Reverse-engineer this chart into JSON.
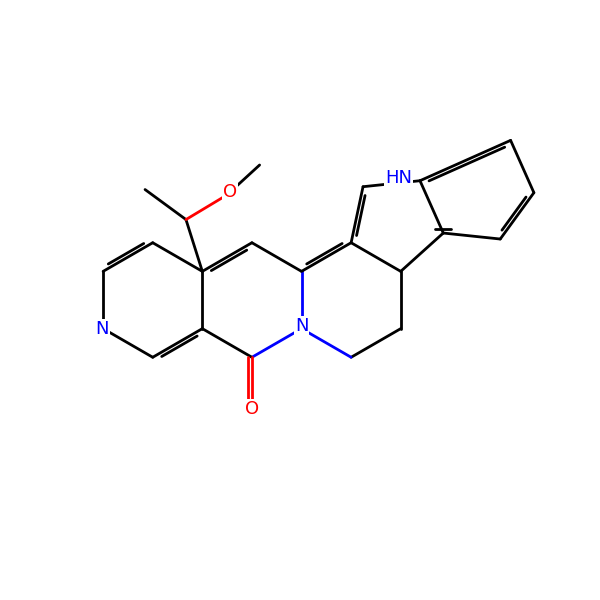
{
  "bg": "#ffffff",
  "bond_color": "#000000",
  "N_color": "#0000ff",
  "O_color": "#ff0000",
  "lw": 2.0,
  "dbl_sep": 0.07,
  "figsize": [
    6.0,
    6.0
  ],
  "dpi": 100,
  "xlim": [
    -0.5,
    10.5
  ],
  "ylim": [
    -0.5,
    10.5
  ],
  "font_size": 13
}
